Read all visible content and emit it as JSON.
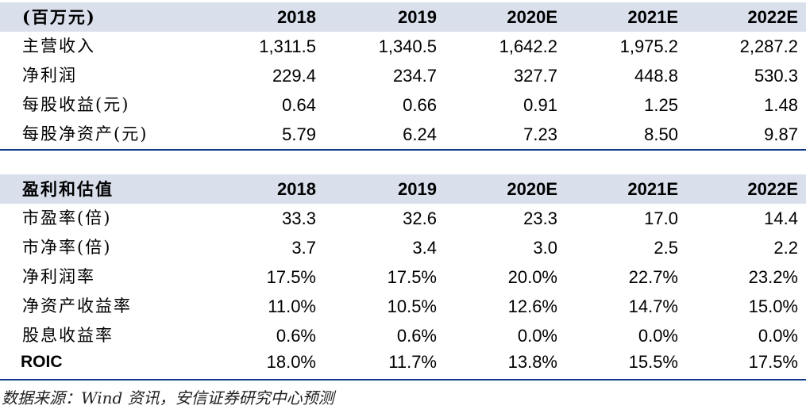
{
  "table1": {
    "header": [
      "(百万元)",
      "2018",
      "2019",
      "2020E",
      "2021E",
      "2022E"
    ],
    "rows": [
      [
        "主营收入",
        "1,311.5",
        "1,340.5",
        "1,642.2",
        "1,975.2",
        "2,287.2"
      ],
      [
        "净利润",
        "229.4",
        "234.7",
        "327.7",
        "448.8",
        "530.3"
      ],
      [
        "每股收益(元)",
        "0.64",
        "0.66",
        "0.91",
        "1.25",
        "1.48"
      ],
      [
        "每股净资产(元)",
        "5.79",
        "6.24",
        "7.23",
        "8.50",
        "9.87"
      ]
    ]
  },
  "table2": {
    "header": [
      "盈利和估值",
      "2018",
      "2019",
      "2020E",
      "2021E",
      "2022E"
    ],
    "rows": [
      [
        "市盈率(倍)",
        "33.3",
        "32.6",
        "23.3",
        "17.0",
        "14.4"
      ],
      [
        "市净率(倍)",
        "3.7",
        "3.4",
        "3.0",
        "2.5",
        "2.2"
      ],
      [
        "净利润率",
        "17.5%",
        "17.5%",
        "20.0%",
        "22.7%",
        "23.2%"
      ],
      [
        "净资产收益率",
        "11.0%",
        "10.5%",
        "12.6%",
        "14.7%",
        "15.0%"
      ],
      [
        "股息收益率",
        "0.6%",
        "0.6%",
        "0.0%",
        "0.0%",
        "0.0%"
      ],
      [
        "ROIC",
        "18.0%",
        "11.7%",
        "13.8%",
        "15.5%",
        "17.5%"
      ]
    ]
  },
  "source": "数据来源：Wind 资讯，安信证券研究中心预测",
  "colors": {
    "header_bg": "#d9e0ec",
    "rule": "#0e3a8a"
  }
}
